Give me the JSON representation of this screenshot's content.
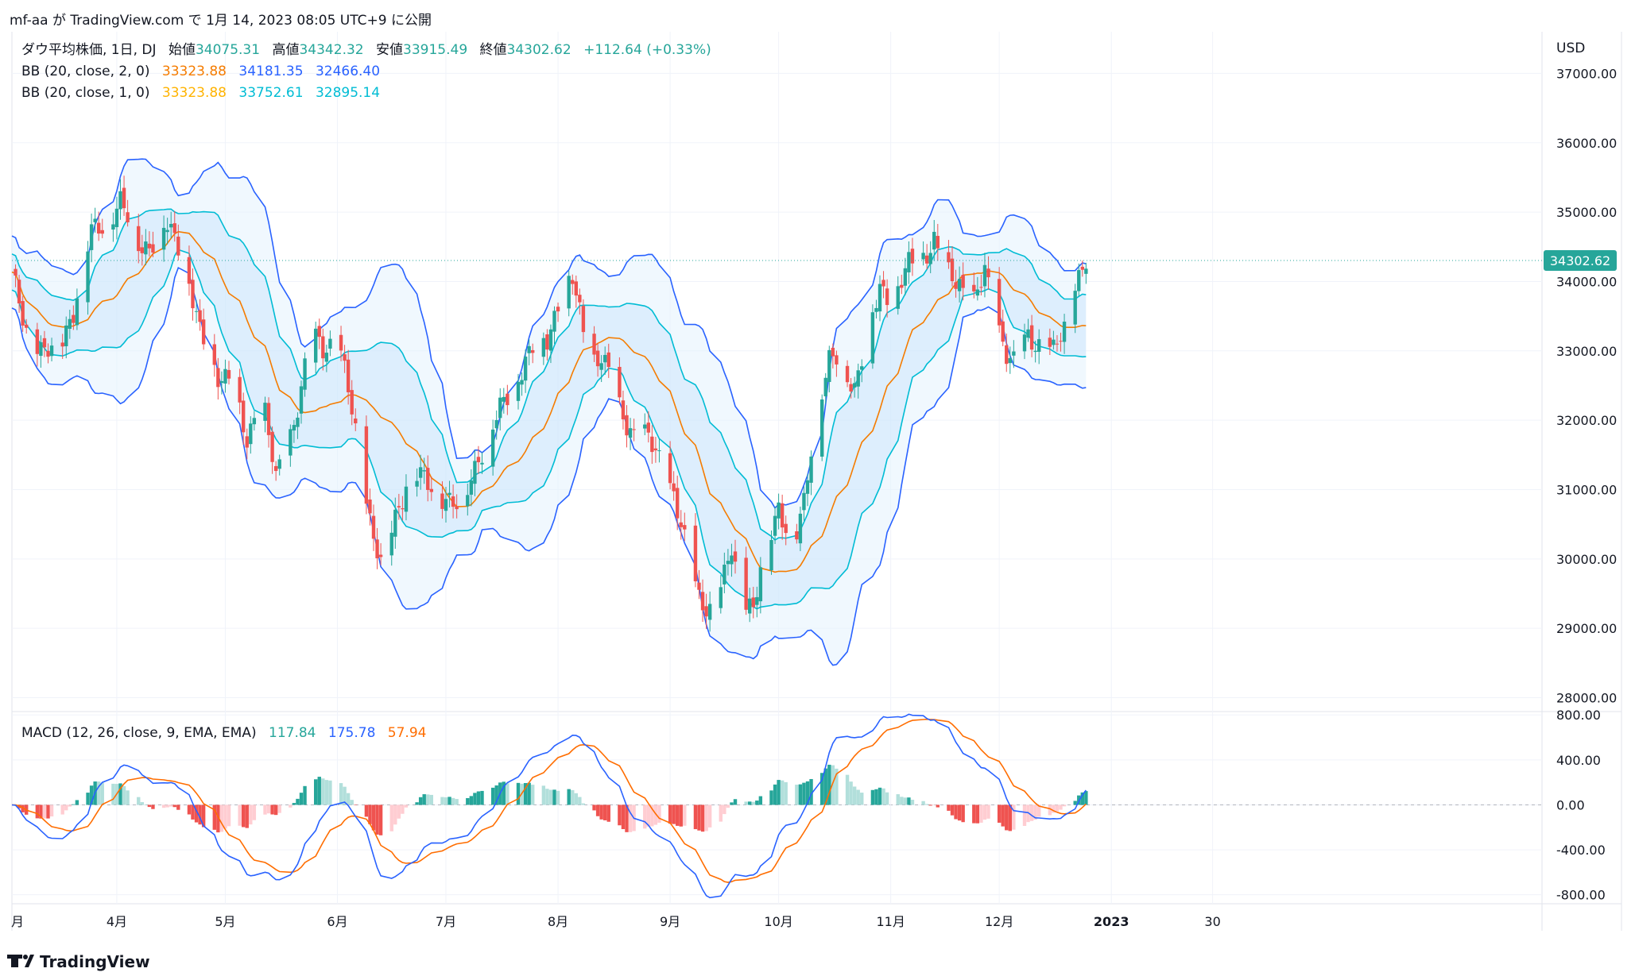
{
  "header": {
    "publish_line": "mf-aa が TradingView.com で 1月 14, 2023 08:05 UTC+9 に公開"
  },
  "footer": {
    "brand": "TradingView"
  },
  "colors": {
    "up": "#26a69a",
    "down": "#ef5350",
    "up_hist_light": "#b2dfdb",
    "down_hist_light": "#ffcdd2",
    "bb_basis": "#f57c00",
    "bb2_band": "#2962ff",
    "bb1_band": "#00bcd4",
    "bb_fill": "#e3f2fd",
    "macd": "#2962ff",
    "signal": "#ff6d00",
    "price_tag": "#26a69a"
  },
  "chart_data": [
    {
      "type": "candlestick",
      "symbol_line": {
        "title": "ダウ平均株価, 1日, DJ",
        "open_label": "始値",
        "open": "34075.31",
        "high_label": "高値",
        "high": "34342.32",
        "low_label": "安値",
        "low": "33915.49",
        "close_label": "終値",
        "close": "34302.62",
        "change": "+112.64 (+0.33%)"
      },
      "indicators": [
        {
          "name": "BB (20, close, 2, 0)",
          "values": [
            "33323.88",
            "34181.35",
            "32466.40"
          ]
        },
        {
          "name": "BB (20, close, 1, 0)",
          "values": [
            "33323.88",
            "33752.61",
            "32895.14"
          ]
        }
      ],
      "currency": "USD",
      "last_price_tag": "34302.62",
      "y_ticks": [
        "37000.00",
        "36000.00",
        "35000.00",
        "34000.00",
        "33000.00",
        "32000.00",
        "31000.00",
        "30000.00",
        "29000.00",
        "28000.00"
      ],
      "ylim": [
        27800,
        37600
      ],
      "x_ticks": [
        "月",
        "4月",
        "5月",
        "6月",
        "7月",
        "8月",
        "9月",
        "10月",
        "11月",
        "12月",
        "2023",
        "30"
      ],
      "x_tick_days": [
        -2,
        29,
        59,
        90,
        120,
        151,
        182,
        212,
        243,
        273,
        304,
        332
      ],
      "close_path": [
        [
          0,
          34050
        ],
        [
          4,
          33300
        ],
        [
          8,
          33000
        ],
        [
          12,
          32950
        ],
        [
          17,
          33600
        ],
        [
          22,
          34700
        ],
        [
          27,
          34950
        ],
        [
          30,
          35100
        ],
        [
          35,
          34600
        ],
        [
          38,
          34500
        ],
        [
          43,
          34800
        ],
        [
          47,
          34500
        ],
        [
          52,
          33200
        ],
        [
          57,
          32700
        ],
        [
          60,
          32600
        ],
        [
          65,
          31700
        ],
        [
          69,
          32450
        ],
        [
          73,
          31100
        ],
        [
          78,
          32000
        ],
        [
          83,
          33200
        ],
        [
          86,
          33050
        ],
        [
          90,
          33200
        ],
        [
          93,
          32400
        ],
        [
          99,
          30600
        ],
        [
          102,
          29900
        ],
        [
          105,
          30400
        ],
        [
          110,
          31300
        ],
        [
          116,
          31000
        ],
        [
          119,
          30950
        ],
        [
          124,
          30700
        ],
        [
          129,
          31500
        ],
        [
          134,
          32000
        ],
        [
          139,
          32600
        ],
        [
          144,
          33000
        ],
        [
          148,
          33200
        ],
        [
          151,
          33700
        ],
        [
          155,
          34000
        ],
        [
          158,
          33300
        ],
        [
          160,
          32900
        ],
        [
          163,
          32900
        ],
        [
          168,
          32200
        ],
        [
          172,
          31800
        ],
        [
          176,
          31700
        ],
        [
          180,
          31400
        ],
        [
          183,
          30900
        ],
        [
          186,
          30200
        ],
        [
          190,
          29500
        ],
        [
          194,
          29200
        ],
        [
          197,
          29700
        ],
        [
          199,
          30200
        ],
        [
          202,
          29500
        ],
        [
          205,
          29200
        ],
        [
          208,
          30100
        ],
        [
          212,
          30800
        ],
        [
          216,
          30100
        ],
        [
          219,
          30800
        ],
        [
          222,
          32100
        ],
        [
          226,
          32800
        ],
        [
          229,
          32900
        ],
        [
          233,
          32500
        ],
        [
          236,
          33100
        ],
        [
          240,
          33900
        ],
        [
          244,
          33800
        ],
        [
          248,
          34200
        ],
        [
          252,
          34400
        ],
        [
          255,
          34600
        ],
        [
          258,
          34100
        ],
        [
          262,
          34000
        ],
        [
          266,
          33700
        ],
        [
          269,
          34100
        ],
        [
          272,
          33500
        ],
        [
          275,
          33000
        ],
        [
          277,
          32800
        ],
        [
          281,
          33200
        ],
        [
          285,
          33100
        ],
        [
          288,
          32950
        ],
        [
          291,
          33300
        ],
        [
          294,
          34000
        ],
        [
          297,
          34300
        ]
      ],
      "bollinger_bands": {
        "period": 20,
        "basis_color": "#f57c00",
        "upper_2sd": "#2962ff",
        "lower_2sd": "#2962ff",
        "upper_1sd": "#00bcd4",
        "lower_1sd": "#00bcd4"
      }
    },
    {
      "type": "macd",
      "title": "MACD (12, 26, close, 9, EMA, EMA)",
      "values": [
        "117.84",
        "175.78",
        "57.94"
      ],
      "y_ticks": [
        "800.00",
        "400.00",
        "0.00",
        "-400.00",
        "-800.00"
      ],
      "ylim": [
        -880,
        830
      ]
    }
  ]
}
